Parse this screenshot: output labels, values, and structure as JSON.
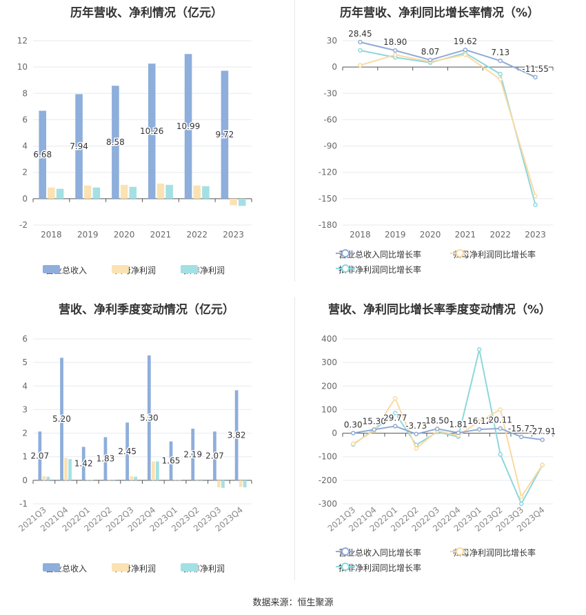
{
  "source_label": "数据来源：恒生聚源",
  "legend_bar": [
    "营业总收入",
    "归母净利润",
    "扣非净利润"
  ],
  "legend_line": [
    "营业总收入同比增长率",
    "归母净利润同比增长率",
    "扣非净利润同比增长率"
  ],
  "colors": {
    "s1": "#8eaedb",
    "s2": "#fbe2b3",
    "s3": "#a3e0e4",
    "l1": "#8eaad6",
    "l2": "#fbd9a0",
    "l3": "#8cd7dc"
  },
  "chart_data": [
    {
      "type": "bar",
      "title": "历年营收、净利情况（亿元）",
      "categories": [
        "2018",
        "2019",
        "2020",
        "2021",
        "2022",
        "2023"
      ],
      "ylim": [
        -2,
        12
      ],
      "yticks": [
        -2,
        0,
        2,
        4,
        6,
        8,
        10,
        12
      ],
      "series": [
        {
          "name": "营业总收入",
          "values": [
            6.68,
            7.94,
            8.58,
            10.26,
            10.99,
            9.72
          ]
        },
        {
          "name": "归母净利润",
          "values": [
            0.85,
            1.0,
            1.05,
            1.15,
            1.0,
            -0.5
          ]
        },
        {
          "name": "扣非净利润",
          "values": [
            0.75,
            0.85,
            0.9,
            1.05,
            0.95,
            -0.55
          ]
        }
      ],
      "data_labels": [
        "6.68",
        "7.94",
        "8.58",
        "10.26",
        "10.99",
        "9.72"
      ],
      "grid": true
    },
    {
      "type": "line",
      "title": "历年营收、净利同比增长率情况（%）",
      "categories": [
        "2018",
        "2019",
        "2020",
        "2021",
        "2022",
        "2023"
      ],
      "ylim": [
        -180,
        30
      ],
      "yticks": [
        -180,
        -150,
        -120,
        -90,
        -60,
        -30,
        0,
        30
      ],
      "series": [
        {
          "name": "营业总收入同比增长率",
          "values": [
            28.45,
            18.9,
            8.07,
            19.62,
            7.13,
            -11.55
          ]
        },
        {
          "name": "归母净利润同比增长率",
          "values": [
            2,
            14,
            6,
            14,
            -14,
            -147
          ]
        },
        {
          "name": "扣非净利润同比增长率",
          "values": [
            19,
            11,
            5,
            16,
            -8,
            -157
          ]
        }
      ],
      "data_labels": [
        "28.45",
        "18.90",
        "8.07",
        "19.62",
        "7.13",
        "-11.55"
      ],
      "grid": true
    },
    {
      "type": "bar",
      "title": "营收、净利季度变动情况（亿元）",
      "categories": [
        "2021Q3",
        "2021Q4",
        "2022Q1",
        "2022Q2",
        "2022Q3",
        "2022Q4",
        "2023Q1",
        "2023Q2",
        "2023Q3",
        "2023Q4"
      ],
      "ylim": [
        -1,
        6
      ],
      "yticks": [
        -1,
        0,
        1,
        2,
        3,
        4,
        5,
        6
      ],
      "series": [
        {
          "name": "营业总收入",
          "values": [
            2.07,
            5.2,
            1.42,
            1.83,
            2.45,
            5.3,
            1.65,
            2.19,
            2.07,
            3.82
          ]
        },
        {
          "name": "归母净利润",
          "values": [
            0.18,
            0.95,
            0.02,
            0.03,
            0.17,
            0.8,
            0.02,
            0.05,
            -0.3,
            -0.28
          ]
        },
        {
          "name": "扣非净利润",
          "values": [
            0.15,
            0.9,
            0.01,
            0.02,
            0.15,
            0.8,
            0.01,
            0.04,
            -0.32,
            -0.3
          ]
        }
      ],
      "data_labels": [
        "2.07",
        "5.20",
        "1.42",
        "1.83",
        "2.45",
        "5.30",
        "1.65",
        "2.19",
        "2.07",
        "3.82"
      ],
      "grid": true
    },
    {
      "type": "line",
      "title": "营收、净利同比增长率季度变动情况（%）",
      "categories": [
        "2021Q3",
        "2021Q4",
        "2022Q1",
        "2022Q2",
        "2022Q3",
        "2022Q4",
        "2023Q1",
        "2023Q2",
        "2023Q3",
        "2023Q4"
      ],
      "ylim": [
        -300,
        400
      ],
      "yticks": [
        -300,
        -200,
        -100,
        0,
        100,
        200,
        300,
        400
      ],
      "series": [
        {
          "name": "营业总收入同比增长率",
          "values": [
            0.3,
            15.3,
            29.77,
            -3.73,
            18.5,
            1.81,
            16.12,
            20.11,
            -15.77,
            -27.91
          ]
        },
        {
          "name": "归母净利润同比增长率",
          "values": [
            -45,
            10,
            148,
            -65,
            10,
            -10,
            50,
            100,
            -270,
            -135
          ]
        },
        {
          "name": "扣非净利润同比增长率",
          "values": [
            -48,
            15,
            85,
            -50,
            5,
            -15,
            355,
            -90,
            -300,
            -135
          ]
        }
      ],
      "data_labels": [
        "0.30",
        "15.30",
        "29.77",
        "-3.73",
        "18.50",
        "1.81",
        "16.12",
        "20.11",
        "-15.77",
        "-27.91"
      ],
      "grid": true
    }
  ]
}
